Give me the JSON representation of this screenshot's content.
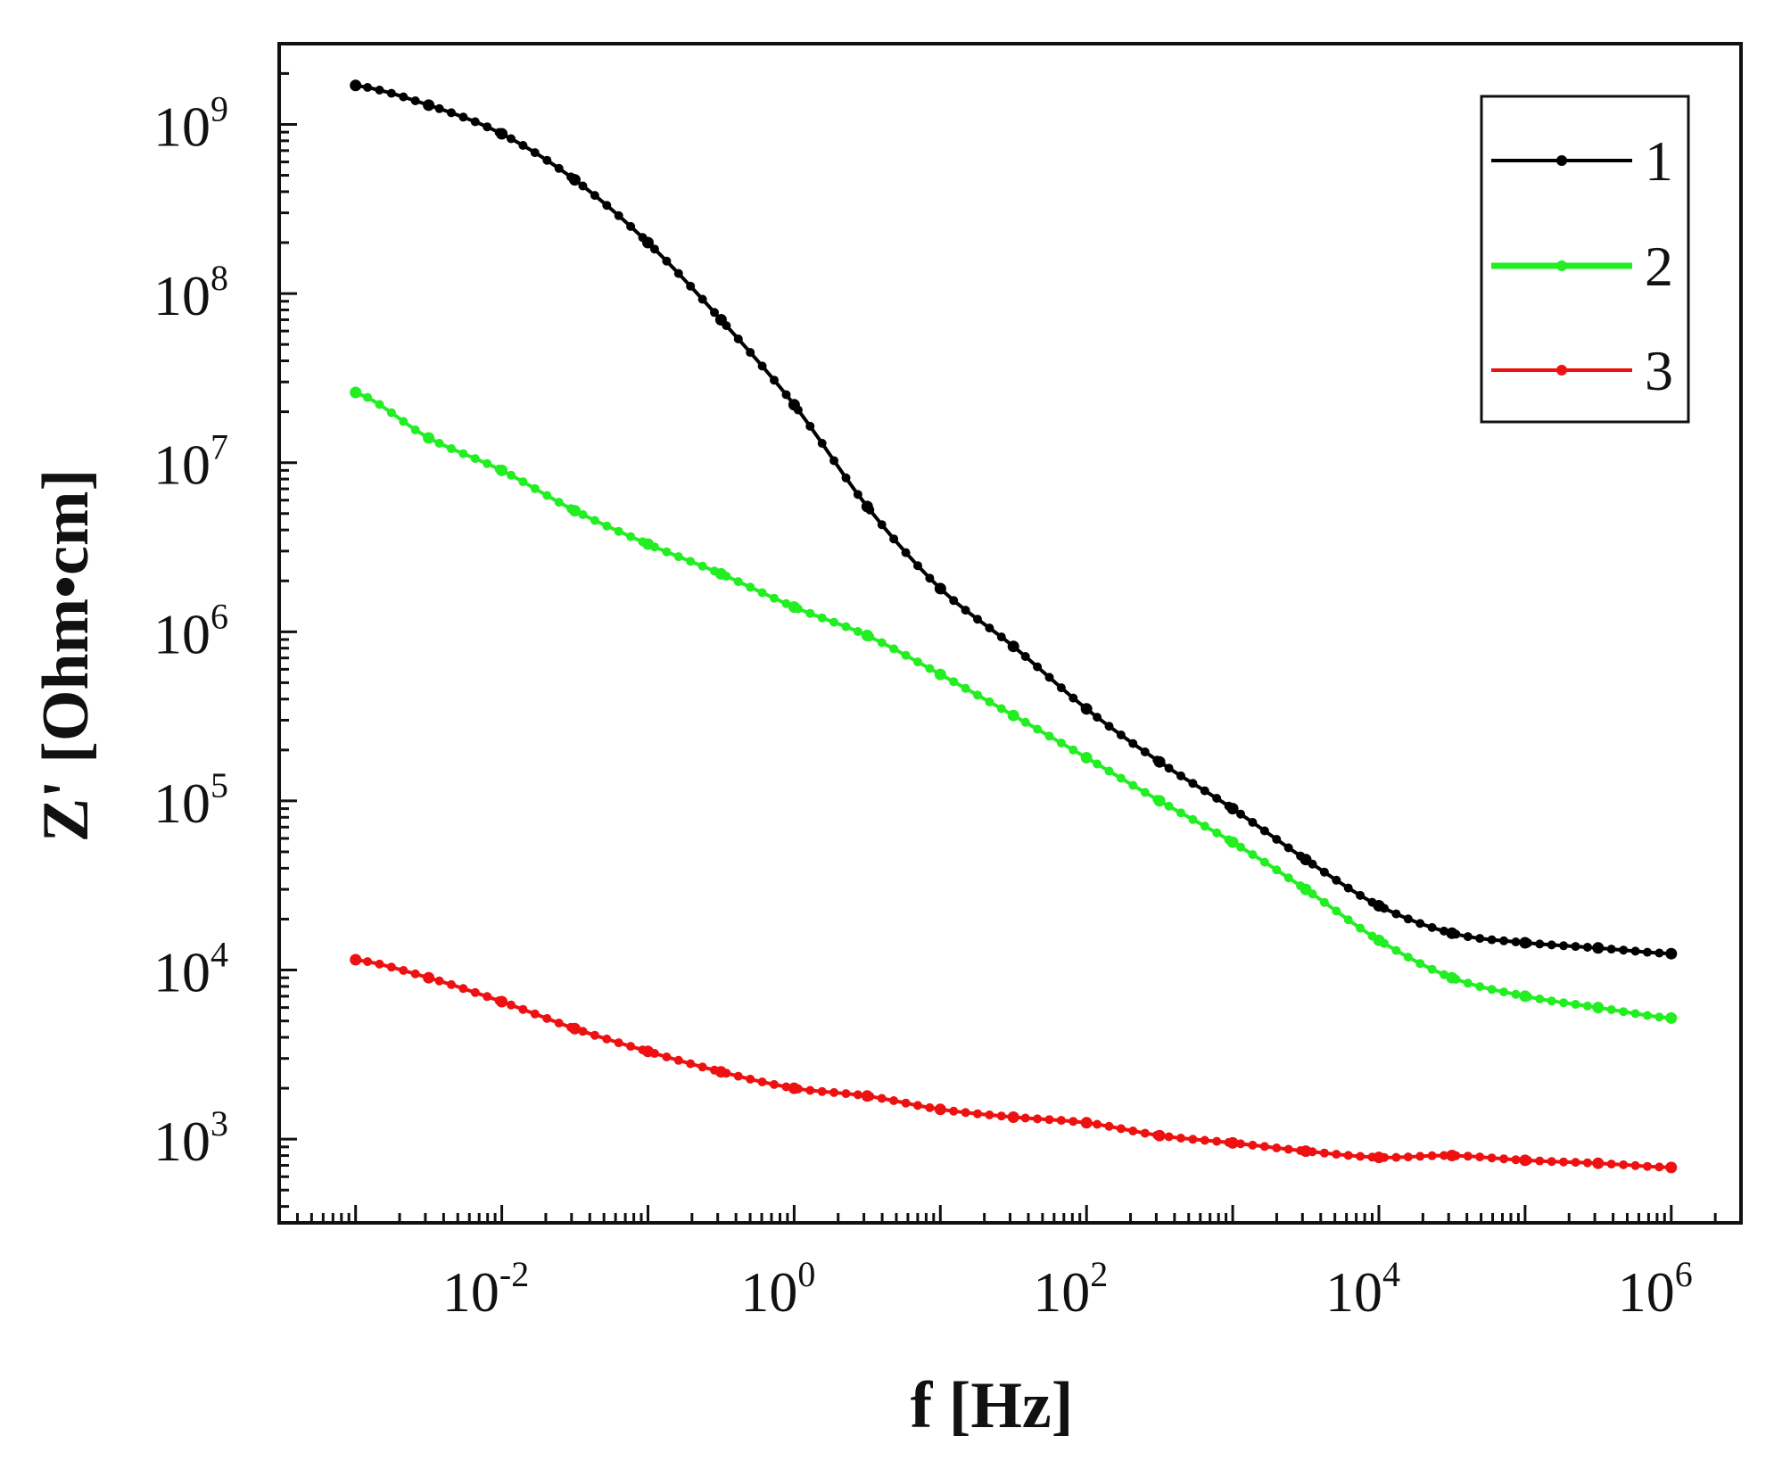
{
  "chart_data": {
    "type": "line",
    "title": "",
    "xlabel": "f [Hz]",
    "ylabel": "Z' [Ohm•cm]",
    "xscale": "log",
    "yscale": "log",
    "xlim": [
      0.0003,
      3000000
    ],
    "ylim": [
      320,
      3000000000
    ],
    "x_ticks": [
      {
        "base": "10",
        "exp": "-2",
        "value": 0.01
      },
      {
        "base": "10",
        "exp": "0",
        "value": 1
      },
      {
        "base": "10",
        "exp": "2",
        "value": 100
      },
      {
        "base": "10",
        "exp": "4",
        "value": 10000
      },
      {
        "base": "10",
        "exp": "6",
        "value": 1000000
      }
    ],
    "y_ticks": [
      {
        "base": "10",
        "exp": "3",
        "value": 1000
      },
      {
        "base": "10",
        "exp": "4",
        "value": 10000
      },
      {
        "base": "10",
        "exp": "5",
        "value": 100000
      },
      {
        "base": "10",
        "exp": "6",
        "value": 1000000
      },
      {
        "base": "10",
        "exp": "7",
        "value": 10000000
      },
      {
        "base": "10",
        "exp": "8",
        "value": 100000000
      },
      {
        "base": "10",
        "exp": "9",
        "value": 1000000000
      }
    ],
    "grid": false,
    "legend_position": "top-right",
    "x": [
      0.001,
      0.00316,
      0.01,
      0.0316,
      0.1,
      0.316,
      1,
      3.16,
      10,
      31.6,
      100,
      316,
      1000,
      3160,
      10000,
      31600,
      100000,
      316000,
      1000000
    ],
    "series": [
      {
        "name": "1",
        "color": "#000000",
        "values": [
          1700000000,
          1300000000,
          880000000,
          470000000,
          200000000,
          70000000,
          22000000,
          5500000,
          1800000,
          820000,
          350000,
          170000,
          90000,
          45000,
          24000,
          16500,
          14500,
          13500,
          12500
        ]
      },
      {
        "name": "2",
        "color": "#22ee22",
        "values": [
          26000000,
          14000000,
          9000000,
          5200000,
          3300000,
          2200000,
          1400000,
          950000,
          560000,
          320000,
          180000,
          100000,
          57000,
          30000,
          15000,
          9000,
          7000,
          6000,
          5200
        ]
      },
      {
        "name": "3",
        "color": "#ee1111",
        "values": [
          11500,
          9000,
          6500,
          4500,
          3300,
          2500,
          2000,
          1800,
          1500,
          1350,
          1250,
          1050,
          950,
          850,
          780,
          800,
          750,
          720,
          680
        ]
      }
    ]
  }
}
